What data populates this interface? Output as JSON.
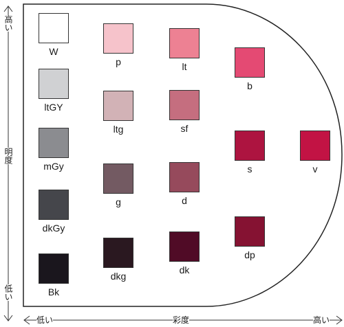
{
  "axes": {
    "vertical": {
      "label": "明度",
      "high": "高い",
      "low": "低い"
    },
    "horizontal": {
      "label": "彩度",
      "high": "高い",
      "low": "低い"
    }
  },
  "tones": [
    {
      "id": "W",
      "label": "W",
      "color": "#ffffff"
    },
    {
      "id": "ltGY",
      "label": "ltGY",
      "color": "#d0d1d3"
    },
    {
      "id": "mGy",
      "label": "mGy",
      "color": "#8b8c90"
    },
    {
      "id": "dkGy",
      "label": "dkGy",
      "color": "#45464b"
    },
    {
      "id": "Bk",
      "label": "Bk",
      "color": "#1a161d"
    },
    {
      "id": "p",
      "label": "p",
      "color": "#f6c3cb"
    },
    {
      "id": "ltg",
      "label": "ltg",
      "color": "#d2b2b6"
    },
    {
      "id": "g",
      "label": "g",
      "color": "#735a62"
    },
    {
      "id": "dkg",
      "label": "dkg",
      "color": "#2a1820"
    },
    {
      "id": "lt",
      "label": "lt",
      "color": "#ed8193"
    },
    {
      "id": "sf",
      "label": "sf",
      "color": "#c56e7f"
    },
    {
      "id": "d",
      "label": "d",
      "color": "#964a5c"
    },
    {
      "id": "dk",
      "label": "dk",
      "color": "#500b26"
    },
    {
      "id": "b",
      "label": "b",
      "color": "#e44a73"
    },
    {
      "id": "s",
      "label": "s",
      "color": "#ad1440"
    },
    {
      "id": "dp",
      "label": "dp",
      "color": "#851232"
    },
    {
      "id": "v",
      "label": "v",
      "color": "#c21344"
    }
  ]
}
